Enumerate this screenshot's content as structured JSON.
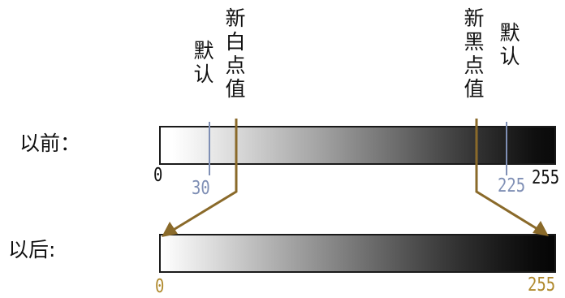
{
  "labels": {
    "default_left": "默认",
    "new_white_point": "新白点值",
    "new_black_point": "新黑点值",
    "default_right": "默认"
  },
  "rows": {
    "before": "以前：",
    "after": "以后:"
  },
  "ticks": {
    "before_min": "0",
    "before_default_white": "30",
    "before_default_black": "225",
    "before_max": "255",
    "after_min": "0",
    "after_max": "255"
  },
  "colors": {
    "default_marker": "#7f8fb5",
    "new_point_marker": "#8a6a2a",
    "arrow": "#8a6a2a",
    "tick_black": "#111111",
    "tick_blue": "#7f8fb5",
    "tick_gold": "#b08a2e"
  }
}
